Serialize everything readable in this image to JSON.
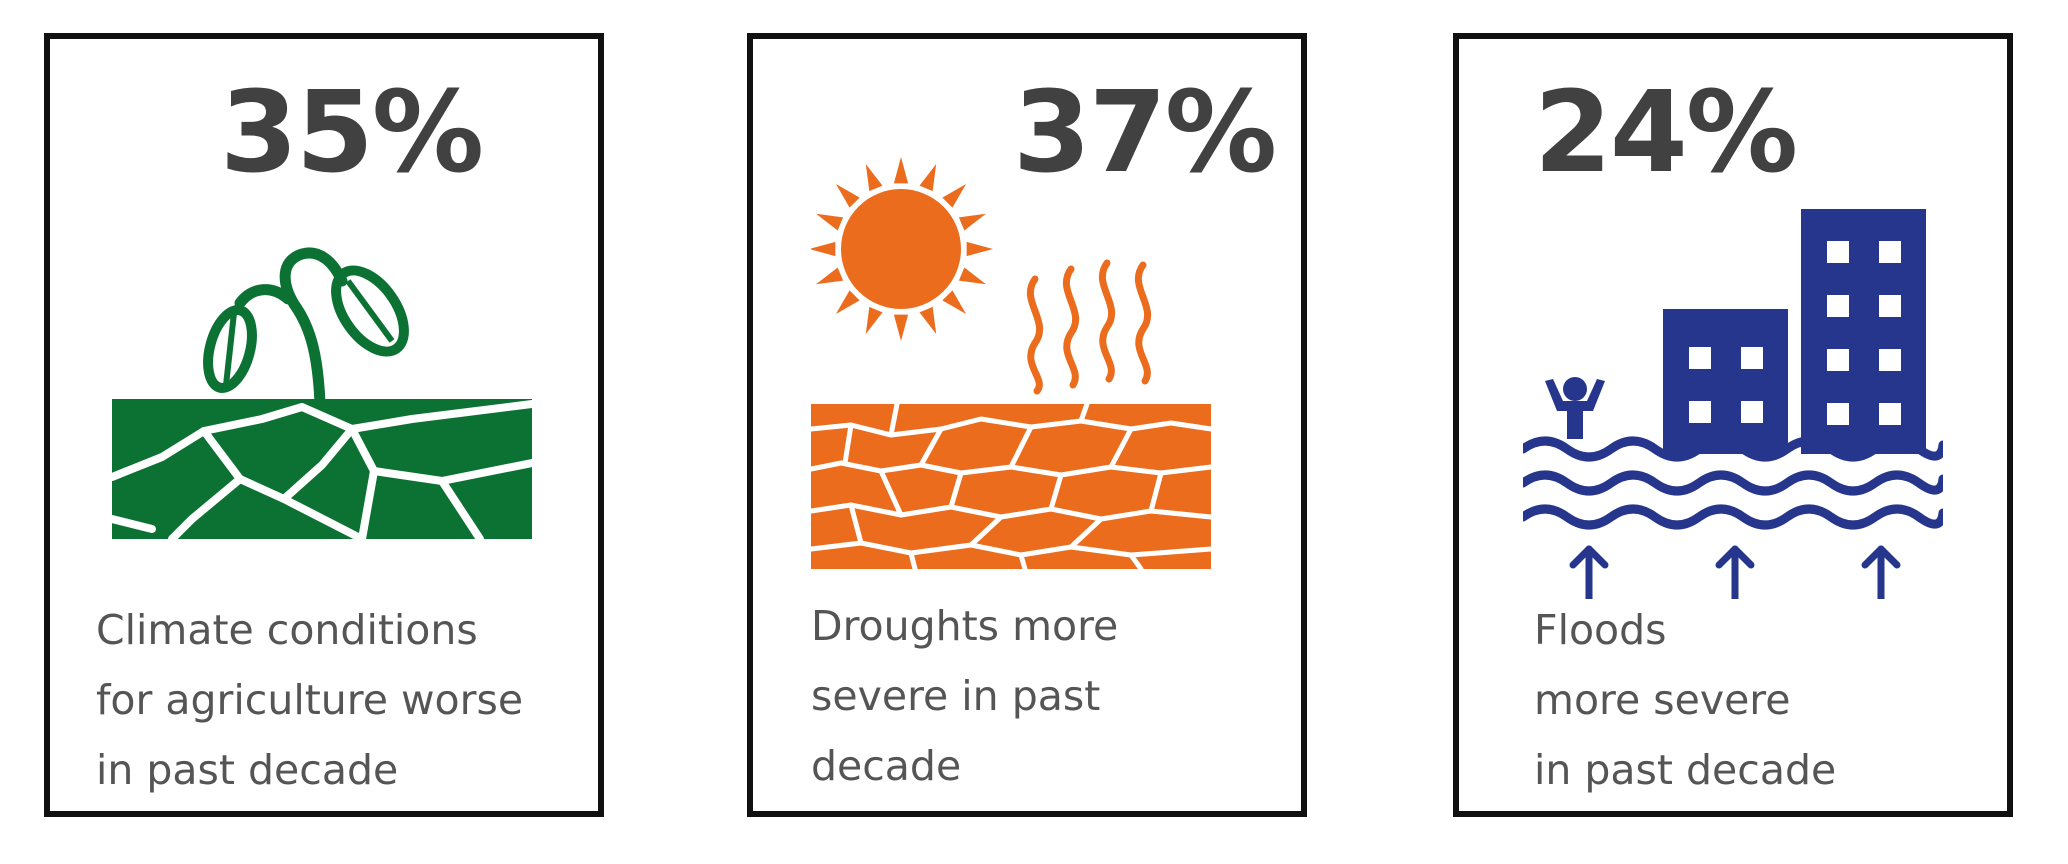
{
  "cards": [
    {
      "stat": "35%",
      "caption": [
        "Climate conditions",
        "for agriculture worse",
        "in past decade"
      ],
      "icon": "sprout-cracked-soil-icon",
      "color": "#0c7233"
    },
    {
      "stat": "37%",
      "caption": [
        "Droughts more",
        "severe in past",
        "decade"
      ],
      "icon": "sun-drought-icon",
      "color": "#ec6c1e"
    },
    {
      "stat": "24%",
      "caption": [
        "Floods",
        "more severe",
        "in past decade"
      ],
      "icon": "flood-buildings-icon",
      "color": "#26368c"
    }
  ]
}
